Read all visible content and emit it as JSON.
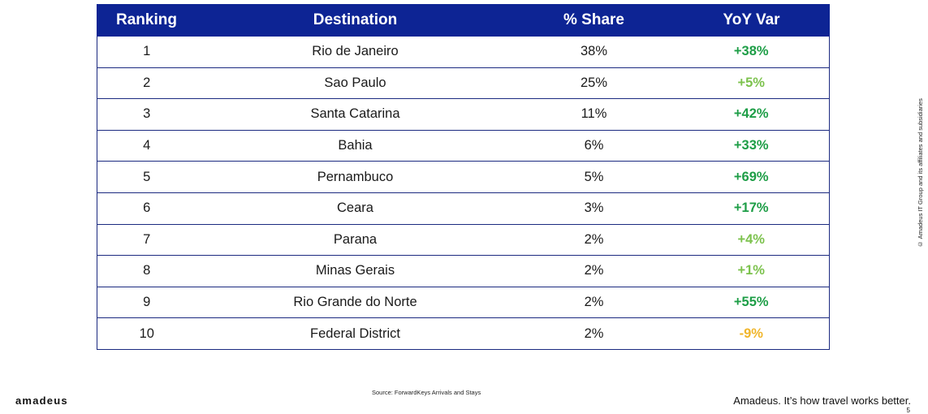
{
  "table": {
    "headers": [
      "Ranking",
      "Destination",
      "% Share",
      "YoY Var"
    ],
    "rows": [
      {
        "rank": "1",
        "destination": "Rio de Janeiro",
        "share": "38%",
        "yoy": "+38%",
        "yoy_color": "#1e9e47"
      },
      {
        "rank": "2",
        "destination": "Sao Paulo",
        "share": "25%",
        "yoy": "+5%",
        "yoy_color": "#7cc24d"
      },
      {
        "rank": "3",
        "destination": "Santa Catarina",
        "share": "11%",
        "yoy": "+42%",
        "yoy_color": "#1e9e47"
      },
      {
        "rank": "4",
        "destination": "Bahia",
        "share": "6%",
        "yoy": "+33%",
        "yoy_color": "#1e9e47"
      },
      {
        "rank": "5",
        "destination": "Pernambuco",
        "share": "5%",
        "yoy": "+69%",
        "yoy_color": "#1e9e47"
      },
      {
        "rank": "6",
        "destination": "Ceara",
        "share": "3%",
        "yoy": "+17%",
        "yoy_color": "#1e9e47"
      },
      {
        "rank": "7",
        "destination": "Parana",
        "share": "2%",
        "yoy": "+4%",
        "yoy_color": "#7cc24d"
      },
      {
        "rank": "8",
        "destination": "Minas Gerais",
        "share": "2%",
        "yoy": "+1%",
        "yoy_color": "#7cc24d"
      },
      {
        "rank": "9",
        "destination": "Rio Grande do Norte",
        "share": "2%",
        "yoy": "+55%",
        "yoy_color": "#1e9e47"
      },
      {
        "rank": "10",
        "destination": "Federal District",
        "share": "2%",
        "yoy": "-9%",
        "yoy_color": "#f0b52a"
      }
    ]
  },
  "footer": {
    "source": "Source: ForwardKeys Arrivals and Stays",
    "logo": "amadeus",
    "tagline": "Amadeus. It’s how travel works better.",
    "page_number": "5",
    "copyright": "© Amadeus IT Group and its affiliates and subsidiaries"
  }
}
